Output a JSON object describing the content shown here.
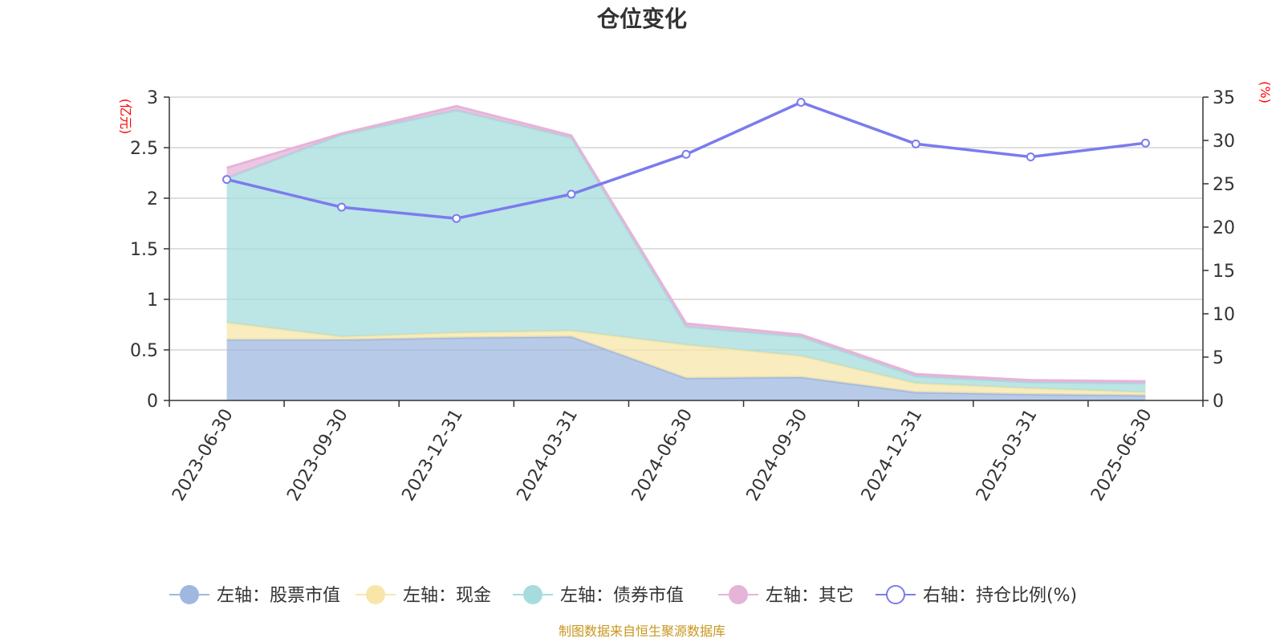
{
  "chart_data": {
    "type": "area",
    "title": "仓位变化",
    "categories": [
      "2023-06-30",
      "2023-09-30",
      "2023-12-31",
      "2024-03-31",
      "2024-06-30",
      "2024-09-30",
      "2024-12-31",
      "2025-03-31",
      "2025-06-30"
    ],
    "left_axis": {
      "unit": "(亿元)",
      "ylim": [
        0,
        3
      ],
      "ticks": [
        "0",
        "0.5",
        "1",
        "1.5",
        "2",
        "2.5",
        "3"
      ]
    },
    "right_axis": {
      "unit": "(%)",
      "ylim": [
        0,
        35
      ],
      "ticks": [
        "0",
        "5",
        "10",
        "15",
        "20",
        "25",
        "30",
        "35"
      ]
    },
    "stacked_series": [
      {
        "name": "左轴：股票市值",
        "color": "#9fb8e0",
        "values": [
          0.6,
          0.6,
          0.62,
          0.63,
          0.22,
          0.23,
          0.08,
          0.06,
          0.05
        ]
      },
      {
        "name": "左轴：现金",
        "color": "#f7e6a8",
        "values": [
          0.17,
          0.03,
          0.05,
          0.06,
          0.33,
          0.21,
          0.09,
          0.06,
          0.03
        ]
      },
      {
        "name": "左轴：债券市值",
        "color": "#a6dcdc",
        "values": [
          1.43,
          2.0,
          2.2,
          1.91,
          0.18,
          0.19,
          0.07,
          0.06,
          0.09
        ]
      },
      {
        "name": "左轴：其它",
        "color": "#e6b3d9",
        "values": [
          0.1,
          0.01,
          0.04,
          0.02,
          0.03,
          0.02,
          0.02,
          0.02,
          0.02
        ]
      }
    ],
    "line_series": {
      "name": "右轴：持仓比例(%)",
      "color": "#7b7bee",
      "values": [
        25.5,
        22.3,
        21.0,
        23.8,
        28.4,
        34.4,
        29.6,
        28.1,
        29.7
      ]
    },
    "grid": true,
    "legend": "bottom"
  },
  "source": "制图数据来自恒生聚源数据库"
}
